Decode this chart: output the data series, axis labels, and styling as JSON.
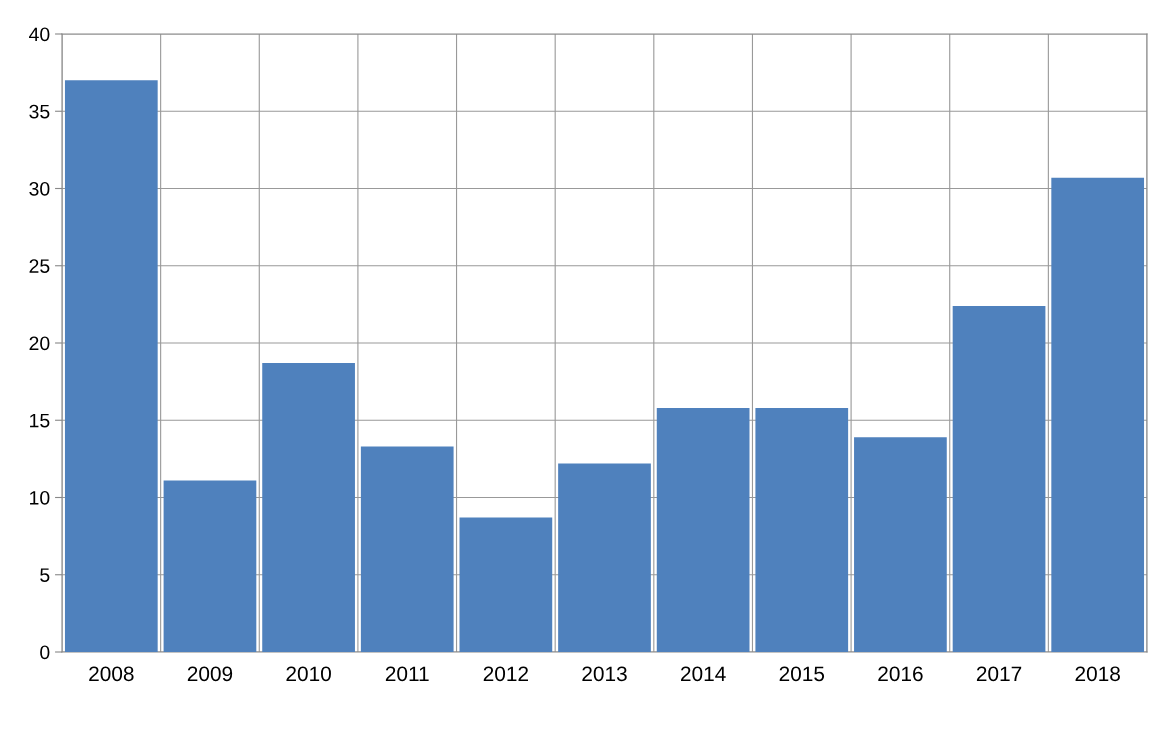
{
  "chart_data": {
    "type": "bar",
    "categories": [
      "2008",
      "2009",
      "2010",
      "2011",
      "2012",
      "2013",
      "2014",
      "2015",
      "2016",
      "2017",
      "2018"
    ],
    "values": [
      37.0,
      11.1,
      18.7,
      13.3,
      8.7,
      12.2,
      15.8,
      15.8,
      13.9,
      22.4,
      30.7
    ],
    "color": "#4f81bd",
    "ylim": [
      0,
      40
    ],
    "yticks": [
      0,
      5,
      10,
      15,
      20,
      25,
      30,
      35,
      40
    ],
    "grid": true,
    "legend": false
  }
}
